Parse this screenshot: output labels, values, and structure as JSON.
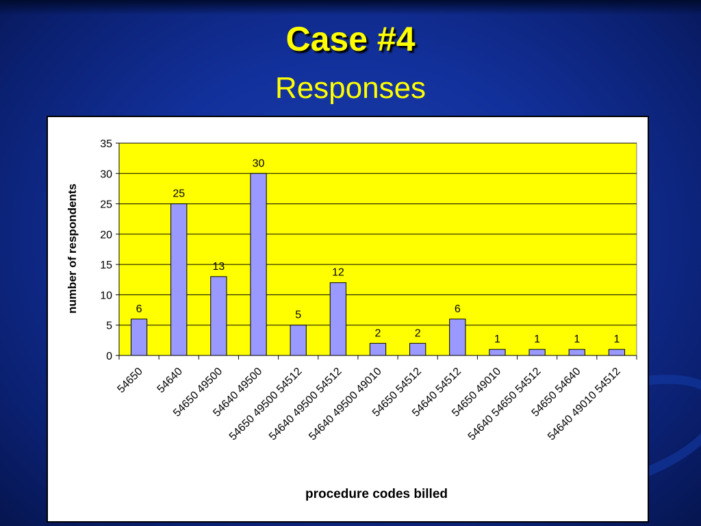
{
  "slide": {
    "title": "Case #4",
    "subtitle": "Responses"
  },
  "colors": {
    "background": "#12309a",
    "title": "#ffff00",
    "plot_area": "#ffff00",
    "bar_fill": "#9999ff",
    "bar_stroke": "#000000"
  },
  "chart_data": {
    "type": "bar",
    "categories": [
      "54650",
      "54640",
      "54650 49500",
      "54640 49500",
      "54650 49500 54512",
      "54640 49500 54512",
      "54640 49500 49010",
      "54650 54512",
      "54640 54512",
      "54650 49010",
      "54640 54650 54512",
      "54650 54640",
      "54640 49010 54512"
    ],
    "values": [
      6,
      25,
      13,
      30,
      5,
      12,
      2,
      2,
      6,
      1,
      1,
      1,
      1
    ],
    "data_labels": [
      "6",
      "25",
      "13",
      "30",
      "5",
      "12",
      "2",
      "2",
      "6",
      "1",
      "1",
      "1",
      "1"
    ],
    "xlabel": "procedure codes billed",
    "ylabel": "number of respondents",
    "ylim": [
      0,
      35
    ],
    "yticks": [
      "0",
      "5",
      "10",
      "15",
      "20",
      "25",
      "30",
      "35"
    ],
    "grid": true,
    "legend": "none"
  }
}
